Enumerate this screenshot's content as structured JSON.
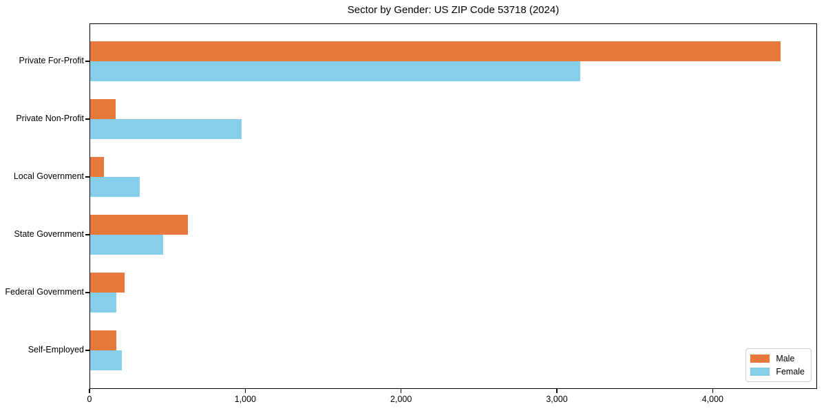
{
  "chart_data": {
    "type": "bar",
    "orientation": "horizontal",
    "title": "Sector by Gender: US ZIP Code 53718 (2024)",
    "categories": [
      "Private For-Profit",
      "Private Non-Profit",
      "Local Government",
      "State Government",
      "Federal Government",
      "Self-Employed"
    ],
    "series": [
      {
        "name": "Male",
        "color": "#E8793D",
        "values": [
          4440,
          165,
          90,
          630,
          220,
          170
        ]
      },
      {
        "name": "Female",
        "color": "#87CEEB",
        "values": [
          3150,
          975,
          320,
          470,
          170,
          205
        ]
      }
    ],
    "xlabel": "",
    "ylabel": "",
    "xlim": [
      0,
      4670
    ],
    "xticks": [
      0,
      1000,
      2000,
      3000,
      4000
    ],
    "xtick_labels": [
      "0",
      "1,000",
      "2,000",
      "3,000",
      "4,000"
    ],
    "grid": false,
    "legend_position": "lower right"
  }
}
